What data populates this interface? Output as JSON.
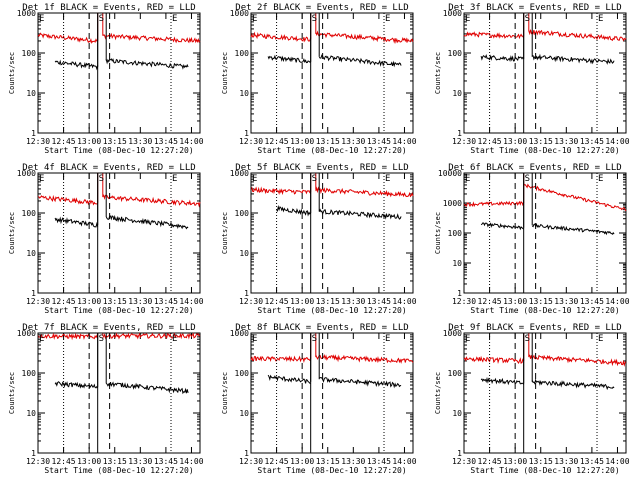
{
  "chart_data": [
    {
      "type": "line",
      "title": "Det 1f BLACK = Events, RED = LLD",
      "xlabel": "Start Time (08-Dec-10 12:27:20)",
      "ylabel": "Counts/sec",
      "yscale": "log",
      "ylim": [
        1,
        1000
      ],
      "xlim": [
        "12:30",
        "14:05"
      ],
      "x_ticks": [
        "12:30",
        "12:45",
        "13:00",
        "13:15",
        "13:30",
        "13:45",
        "14:00"
      ],
      "y_ticks": [
        "1",
        "10",
        "100",
        "1000"
      ],
      "markers": [
        {
          "label": "E",
          "time": "12:30",
          "style": "dotted"
        },
        {
          "label": "",
          "time": "12:45",
          "style": "dotted"
        },
        {
          "label": "",
          "time": "13:00",
          "style": "dashed"
        },
        {
          "label": "S",
          "time": "13:05",
          "style": "solid"
        },
        {
          "label": "",
          "time": "13:12",
          "style": "dashed"
        },
        {
          "label": "E",
          "time": "13:48",
          "style": "dotted"
        }
      ],
      "series": [
        {
          "color": "#e00000",
          "segments": [
            {
              "start": "12:30",
              "end": "13:05",
              "base": 280,
              "end_level": 200
            },
            {
              "start": "13:08",
              "end": "14:05",
              "base": 270,
              "end_level": 200
            }
          ]
        },
        {
          "color": "#000000",
          "segments": [
            {
              "start": "12:40",
              "end": "13:05",
              "base": 60,
              "end_level": 45
            },
            {
              "start": "13:10",
              "end": "13:58",
              "base": 65,
              "end_level": 45
            }
          ]
        }
      ]
    },
    {
      "type": "line",
      "title": "Det 2f BLACK = Events, RED = LLD",
      "xlabel": "Start Time (08-Dec-10 12:27:20)",
      "ylabel": "Counts/sec",
      "yscale": "log",
      "ylim": [
        1,
        1000
      ],
      "xlim": [
        "12:30",
        "14:05"
      ],
      "x_ticks": [
        "12:30",
        "12:45",
        "13:00",
        "13:15",
        "13:30",
        "13:45",
        "14:00"
      ],
      "y_ticks": [
        "1",
        "10",
        "100",
        "1000"
      ],
      "markers": [
        {
          "label": "E",
          "time": "12:30",
          "style": "dotted"
        },
        {
          "label": "",
          "time": "12:45",
          "style": "dotted"
        },
        {
          "label": "",
          "time": "13:00",
          "style": "dashed"
        },
        {
          "label": "S",
          "time": "13:05",
          "style": "solid"
        },
        {
          "label": "",
          "time": "13:12",
          "style": "dashed"
        },
        {
          "label": "E",
          "time": "13:48",
          "style": "dotted"
        }
      ],
      "series": [
        {
          "color": "#e00000",
          "segments": [
            {
              "start": "12:30",
              "end": "13:05",
              "base": 280,
              "end_level": 220
            },
            {
              "start": "13:08",
              "end": "14:05",
              "base": 300,
              "end_level": 200
            }
          ]
        },
        {
          "color": "#000000",
          "segments": [
            {
              "start": "12:40",
              "end": "13:05",
              "base": 80,
              "end_level": 60
            },
            {
              "start": "13:10",
              "end": "13:58",
              "base": 80,
              "end_level": 50
            }
          ]
        }
      ]
    },
    {
      "type": "line",
      "title": "Det 3f BLACK = Events, RED = LLD",
      "xlabel": "Start Time (08-Dec-10 12:27:20)",
      "ylabel": "Counts/sec",
      "yscale": "log",
      "ylim": [
        1,
        1000
      ],
      "xlim": [
        "12:30",
        "14:05"
      ],
      "x_ticks": [
        "12:30",
        "12:45",
        "13:00",
        "13:15",
        "13:30",
        "13:45",
        "14:00"
      ],
      "y_ticks": [
        "1",
        "10",
        "100",
        "1000"
      ],
      "markers": [
        {
          "label": "E",
          "time": "12:30",
          "style": "dotted"
        },
        {
          "label": "",
          "time": "12:45",
          "style": "dotted"
        },
        {
          "label": "",
          "time": "13:00",
          "style": "dashed"
        },
        {
          "label": "S",
          "time": "13:05",
          "style": "solid"
        },
        {
          "label": "",
          "time": "13:12",
          "style": "dashed"
        },
        {
          "label": "E",
          "time": "13:48",
          "style": "dotted"
        }
      ],
      "series": [
        {
          "color": "#e00000",
          "segments": [
            {
              "start": "12:30",
              "end": "13:05",
              "base": 300,
              "end_level": 260
            },
            {
              "start": "13:08",
              "end": "14:05",
              "base": 350,
              "end_level": 220
            }
          ]
        },
        {
          "color": "#000000",
          "segments": [
            {
              "start": "12:40",
              "end": "13:05",
              "base": 80,
              "end_level": 70
            },
            {
              "start": "13:10",
              "end": "13:58",
              "base": 80,
              "end_level": 60
            }
          ]
        }
      ]
    },
    {
      "type": "line",
      "title": "Det 4f BLACK = Events, RED = LLD",
      "xlabel": "Start Time (08-Dec-10 12:27:20)",
      "ylabel": "Counts/sec",
      "yscale": "log",
      "ylim": [
        1,
        1000
      ],
      "xlim": [
        "12:30",
        "14:05"
      ],
      "x_ticks": [
        "12:30",
        "12:45",
        "13:00",
        "13:15",
        "13:30",
        "13:45",
        "14:00"
      ],
      "y_ticks": [
        "1",
        "10",
        "100",
        "1000"
      ],
      "markers": [
        {
          "label": "E",
          "time": "12:30",
          "style": "dotted"
        },
        {
          "label": "",
          "time": "12:45",
          "style": "dotted"
        },
        {
          "label": "",
          "time": "13:00",
          "style": "dashed"
        },
        {
          "label": "S",
          "time": "13:05",
          "style": "solid"
        },
        {
          "label": "",
          "time": "13:12",
          "style": "dashed"
        },
        {
          "label": "E",
          "time": "13:48",
          "style": "dotted"
        }
      ],
      "series": [
        {
          "color": "#e00000",
          "segments": [
            {
              "start": "12:30",
              "end": "13:05",
              "base": 250,
              "end_level": 180
            },
            {
              "start": "13:08",
              "end": "14:05",
              "base": 250,
              "end_level": 170
            }
          ]
        },
        {
          "color": "#000000",
          "segments": [
            {
              "start": "12:40",
              "end": "13:05",
              "base": 70,
              "end_level": 50
            },
            {
              "start": "13:10",
              "end": "13:58",
              "base": 80,
              "end_level": 45
            }
          ]
        }
      ]
    },
    {
      "type": "line",
      "title": "Det 5f BLACK = Events, RED = LLD",
      "xlabel": "Start Time (08-Dec-10 12:27:20)",
      "ylabel": "Counts/sec",
      "yscale": "log",
      "ylim": [
        1,
        1000
      ],
      "xlim": [
        "12:30",
        "14:05"
      ],
      "x_ticks": [
        "12:30",
        "12:45",
        "13:00",
        "13:15",
        "13:30",
        "13:45",
        "14:00"
      ],
      "y_ticks": [
        "1",
        "10",
        "100",
        "1000"
      ],
      "markers": [
        {
          "label": "E",
          "time": "12:30",
          "style": "dotted"
        },
        {
          "label": "",
          "time": "12:45",
          "style": "dotted"
        },
        {
          "label": "",
          "time": "13:00",
          "style": "dashed"
        },
        {
          "label": "S",
          "time": "13:05",
          "style": "solid"
        },
        {
          "label": "",
          "time": "13:12",
          "style": "dashed"
        },
        {
          "label": "E",
          "time": "13:48",
          "style": "dotted"
        }
      ],
      "series": [
        {
          "color": "#e00000",
          "segments": [
            {
              "start": "12:30",
              "end": "13:05",
              "base": 380,
              "end_level": 330
            },
            {
              "start": "13:08",
              "end": "14:05",
              "base": 380,
              "end_level": 280
            }
          ]
        },
        {
          "color": "#000000",
          "segments": [
            {
              "start": "12:45",
              "end": "13:05",
              "base": 130,
              "end_level": 100
            },
            {
              "start": "13:10",
              "end": "13:58",
              "base": 110,
              "end_level": 80
            }
          ]
        }
      ]
    },
    {
      "type": "line",
      "title": "Det 6f BLACK = Events, RED = LLD",
      "xlabel": "Start Time (08-Dec-10 12:27:20)",
      "ylabel": "Counts/sec",
      "yscale": "log",
      "ylim": [
        1,
        10000
      ],
      "xlim": [
        "12:30",
        "14:05"
      ],
      "x_ticks": [
        "12:30",
        "12:45",
        "13:00",
        "13:15",
        "13:30",
        "13:45",
        "14:00"
      ],
      "y_ticks": [
        "1",
        "10",
        "100",
        "1000",
        "10000"
      ],
      "markers": [
        {
          "label": "E",
          "time": "12:30",
          "style": "dotted"
        },
        {
          "label": "",
          "time": "12:45",
          "style": "dotted"
        },
        {
          "label": "",
          "time": "13:00",
          "style": "dashed"
        },
        {
          "label": "S",
          "time": "13:05",
          "style": "solid"
        },
        {
          "label": "",
          "time": "13:12",
          "style": "dashed"
        },
        {
          "label": "E",
          "time": "13:48",
          "style": "dotted"
        }
      ],
      "series": [
        {
          "color": "#e00000",
          "segments": [
            {
              "start": "12:30",
              "end": "13:05",
              "base": 900,
              "end_level": 1000
            },
            {
              "start": "13:05",
              "end": "14:05",
              "base": 4000,
              "end_level": 600
            }
          ]
        },
        {
          "color": "#000000",
          "segments": [
            {
              "start": "12:40",
              "end": "13:05",
              "base": 200,
              "end_level": 150
            },
            {
              "start": "13:10",
              "end": "13:58",
              "base": 180,
              "end_level": 100
            }
          ]
        }
      ]
    },
    {
      "type": "line",
      "title": "Det 7f BLACK = Events, RED = LLD",
      "xlabel": "Start Time (08-Dec-10 12:27:20)",
      "ylabel": "Counts/sec",
      "yscale": "log",
      "ylim": [
        1,
        1000
      ],
      "xlim": [
        "12:30",
        "14:05"
      ],
      "x_ticks": [
        "12:30",
        "12:45",
        "13:00",
        "13:15",
        "13:30",
        "13:45",
        "14:00"
      ],
      "y_ticks": [
        "1",
        "10",
        "100",
        "1000"
      ],
      "markers": [
        {
          "label": "E",
          "time": "12:30",
          "style": "dotted"
        },
        {
          "label": "",
          "time": "12:45",
          "style": "dotted"
        },
        {
          "label": "",
          "time": "13:00",
          "style": "dashed"
        },
        {
          "label": "S",
          "time": "13:05",
          "style": "solid"
        },
        {
          "label": "",
          "time": "13:12",
          "style": "dashed"
        },
        {
          "label": "E",
          "time": "13:48",
          "style": "dotted"
        }
      ],
      "series": [
        {
          "color": "#e00000",
          "segments": [
            {
              "start": "12:30",
              "end": "13:05",
              "base": 850,
              "end_level": 800
            },
            {
              "start": "13:08",
              "end": "14:05",
              "base": 850,
              "end_level": 850
            }
          ]
        },
        {
          "color": "#000000",
          "segments": [
            {
              "start": "12:40",
              "end": "13:05",
              "base": 55,
              "end_level": 45
            },
            {
              "start": "13:10",
              "end": "13:58",
              "base": 55,
              "end_level": 35
            }
          ]
        }
      ]
    },
    {
      "type": "line",
      "title": "Det 8f BLACK = Events, RED = LLD",
      "xlabel": "Start Time (08-Dec-10 12:27:20)",
      "ylabel": "Counts/sec",
      "yscale": "log",
      "ylim": [
        1,
        1000
      ],
      "xlim": [
        "12:30",
        "14:05"
      ],
      "x_ticks": [
        "12:30",
        "12:45",
        "13:00",
        "13:15",
        "13:30",
        "13:45",
        "14:00"
      ],
      "y_ticks": [
        "1",
        "10",
        "100",
        "1000"
      ],
      "markers": [
        {
          "label": "E",
          "time": "12:30",
          "style": "dotted"
        },
        {
          "label": "",
          "time": "12:45",
          "style": "dotted"
        },
        {
          "label": "",
          "time": "13:00",
          "style": "dashed"
        },
        {
          "label": "S",
          "time": "13:05",
          "style": "solid"
        },
        {
          "label": "",
          "time": "13:12",
          "style": "dashed"
        },
        {
          "label": "E",
          "time": "13:48",
          "style": "dotted"
        }
      ],
      "series": [
        {
          "color": "#e00000",
          "segments": [
            {
              "start": "12:30",
              "end": "13:05",
              "base": 230,
              "end_level": 220
            },
            {
              "start": "13:08",
              "end": "14:05",
              "base": 250,
              "end_level": 200
            }
          ]
        },
        {
          "color": "#000000",
          "segments": [
            {
              "start": "12:40",
              "end": "13:05",
              "base": 80,
              "end_level": 60
            },
            {
              "start": "13:10",
              "end": "13:58",
              "base": 70,
              "end_level": 50
            }
          ]
        }
      ]
    },
    {
      "type": "line",
      "title": "Det 9f BLACK = Events, RED = LLD",
      "xlabel": "Start Time (08-Dec-10 12:27:20)",
      "ylabel": "Counts/sec",
      "yscale": "log",
      "ylim": [
        1,
        1000
      ],
      "xlim": [
        "12:30",
        "14:05"
      ],
      "x_ticks": [
        "12:30",
        "12:45",
        "13:00",
        "13:15",
        "13:30",
        "13:45",
        "14:00"
      ],
      "y_ticks": [
        "1",
        "10",
        "100",
        "1000"
      ],
      "markers": [
        {
          "label": "E",
          "time": "12:30",
          "style": "dotted"
        },
        {
          "label": "",
          "time": "12:45",
          "style": "dotted"
        },
        {
          "label": "",
          "time": "13:00",
          "style": "dashed"
        },
        {
          "label": "S",
          "time": "13:05",
          "style": "solid"
        },
        {
          "label": "",
          "time": "13:12",
          "style": "dashed"
        },
        {
          "label": "E",
          "time": "13:48",
          "style": "dotted"
        }
      ],
      "series": [
        {
          "color": "#e00000",
          "segments": [
            {
              "start": "12:30",
              "end": "13:05",
              "base": 230,
              "end_level": 200
            },
            {
              "start": "13:08",
              "end": "14:05",
              "base": 250,
              "end_level": 180
            }
          ]
        },
        {
          "color": "#000000",
          "segments": [
            {
              "start": "12:40",
              "end": "13:05",
              "base": 70,
              "end_level": 55
            },
            {
              "start": "13:10",
              "end": "13:58",
              "base": 60,
              "end_level": 45
            }
          ]
        }
      ]
    }
  ]
}
